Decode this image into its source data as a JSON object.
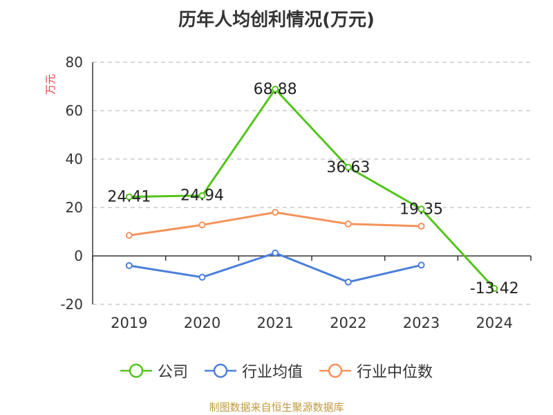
{
  "title": "历年人均创利情况(万元)",
  "source_note": "制图数据来自恒生聚源数据库",
  "chart_data": {
    "type": "line",
    "title": "历年人均创利情况(万元)",
    "ylabel": "万元",
    "xlabel": "",
    "categories": [
      "2019",
      "2020",
      "2021",
      "2022",
      "2023",
      "2024"
    ],
    "ylim": [
      -20,
      80
    ],
    "yticks": [
      -20,
      0,
      20,
      40,
      60,
      80
    ],
    "grid": true,
    "legend_position": "bottom",
    "series": [
      {
        "name": "公司",
        "color": "#52c41a",
        "values": [
          24.41,
          24.94,
          68.88,
          36.63,
          19.35,
          -13.42
        ],
        "labels": [
          "24.41",
          "24.94",
          "68.88",
          "36.63",
          "19.35",
          "-13.42"
        ]
      },
      {
        "name": "行业均值",
        "color": "#4a7fdb",
        "values": [
          -4,
          -8.8,
          1.2,
          -10.8,
          -3.8,
          null
        ]
      },
      {
        "name": "行业中位数",
        "color": "#f5915a",
        "values": [
          8.5,
          12.8,
          18,
          13.2,
          12.3,
          null
        ]
      }
    ]
  }
}
